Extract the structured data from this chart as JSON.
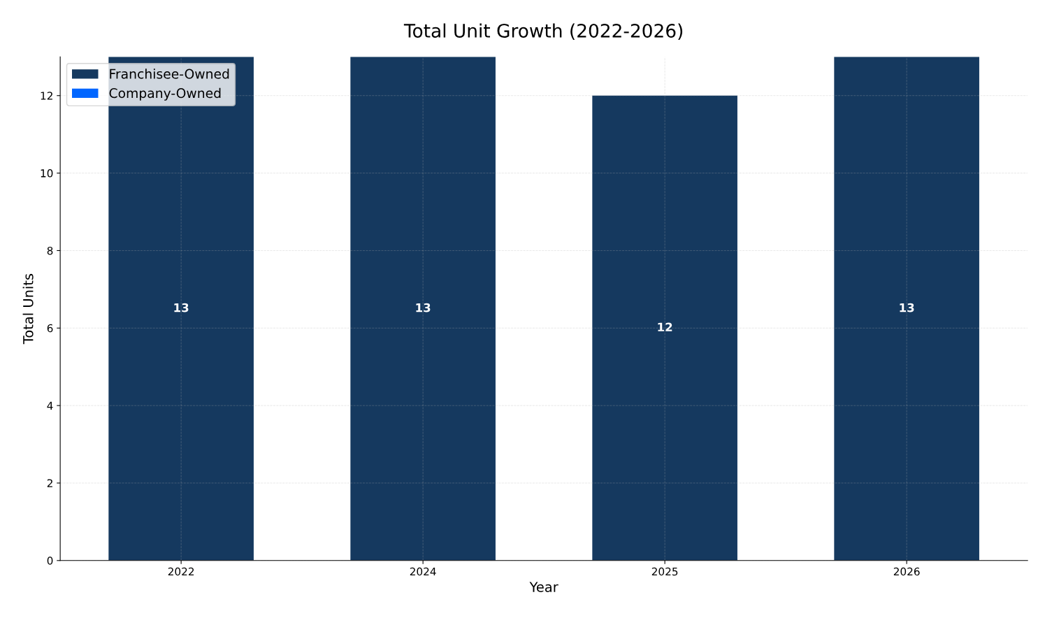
{
  "chart_data": {
    "type": "bar",
    "title": "Total Unit Growth (2022-2026)",
    "xlabel": "Year",
    "ylabel": "Total Units",
    "categories": [
      "2022",
      "2024",
      "2025",
      "2026"
    ],
    "series": [
      {
        "name": "Franchisee-Owned",
        "color": "#15395f",
        "values": [
          13,
          13,
          12,
          13
        ],
        "value_labels": [
          "13",
          "13",
          "12",
          "13"
        ]
      },
      {
        "name": "Company-Owned",
        "color": "#0066ff",
        "values": [
          0,
          0,
          0,
          0
        ],
        "value_labels": [
          null,
          null,
          null,
          null
        ]
      }
    ],
    "stacked": true,
    "ylim": [
      0,
      13
    ],
    "yticks": [
      0,
      2,
      4,
      6,
      8,
      10,
      12
    ],
    "grid": true,
    "legend": "top left"
  }
}
